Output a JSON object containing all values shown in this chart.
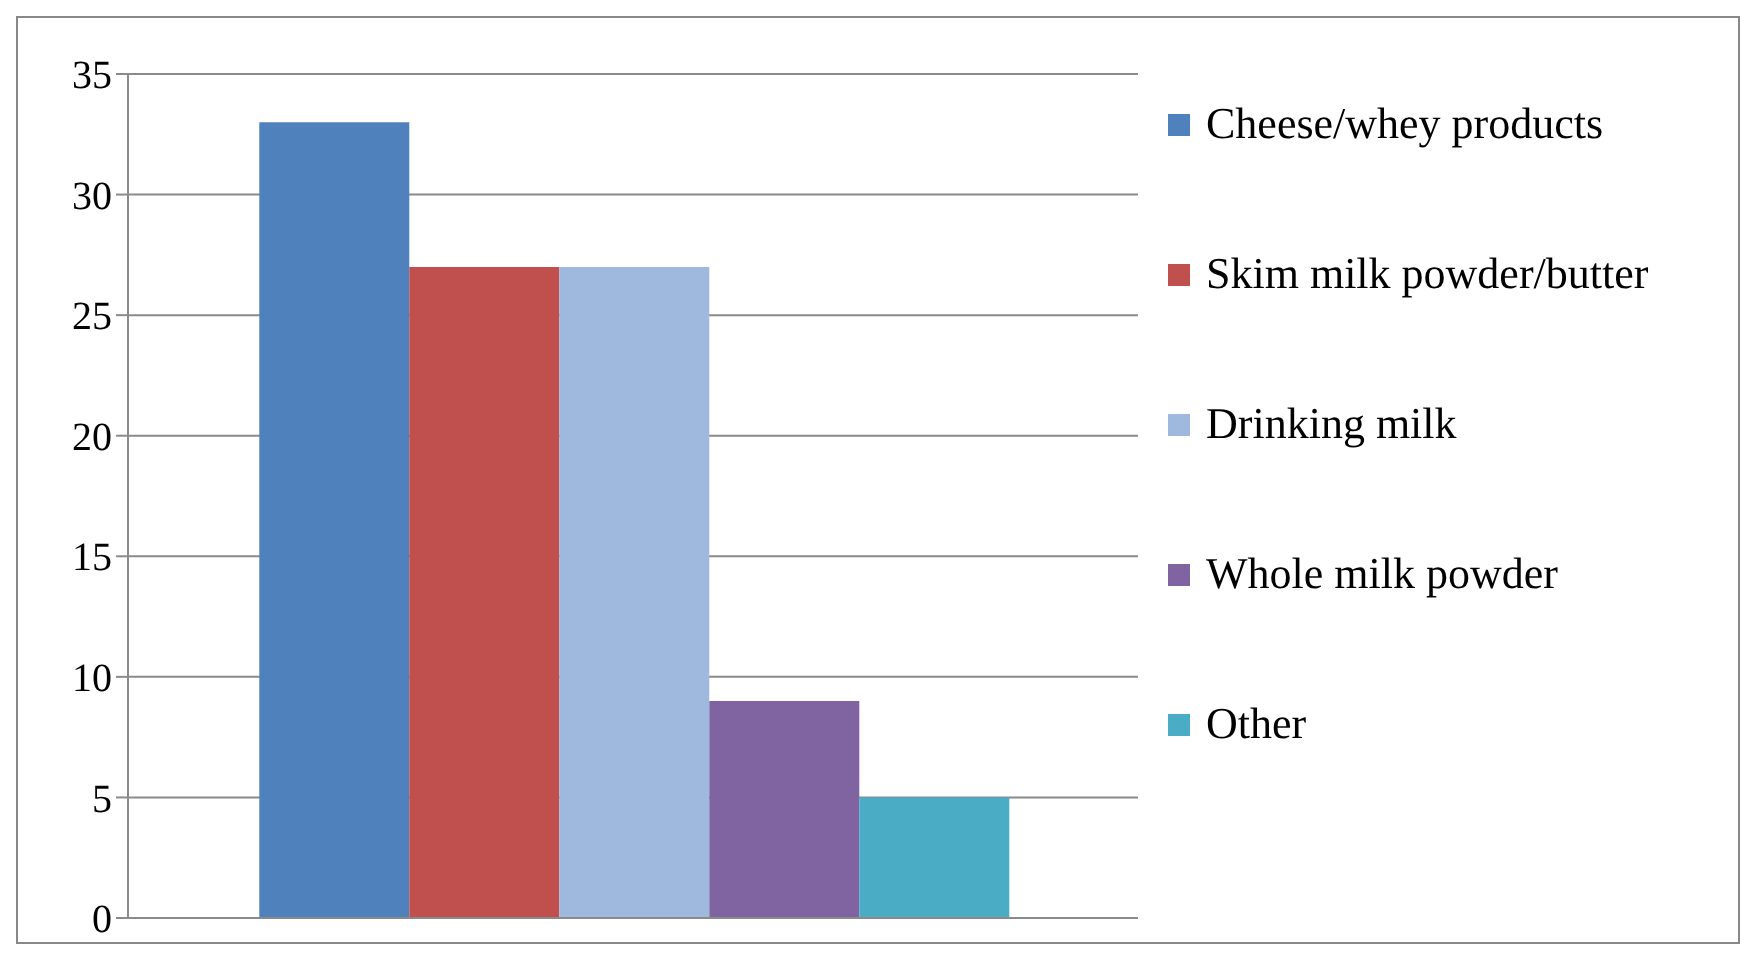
{
  "chart_data": {
    "type": "bar",
    "categories": [
      null
    ],
    "series": [
      {
        "name": "Cheese/whey products",
        "color": "#4f81bd",
        "values": [
          33
        ]
      },
      {
        "name": "Skim milk powder/butter",
        "color": "#c0504d",
        "values": [
          27
        ]
      },
      {
        "name": "Drinking milk",
        "color": "#9fb8de",
        "values": [
          27
        ]
      },
      {
        "name": "Whole milk powder",
        "color": "#8064a2",
        "values": [
          9
        ]
      },
      {
        "name": "Other",
        "color": "#4bacc6",
        "values": [
          5
        ]
      }
    ],
    "ylim": [
      0,
      35
    ],
    "yticks": [
      0,
      5,
      10,
      15,
      20,
      25,
      30,
      35
    ],
    "grid": "y",
    "legend": "right"
  }
}
